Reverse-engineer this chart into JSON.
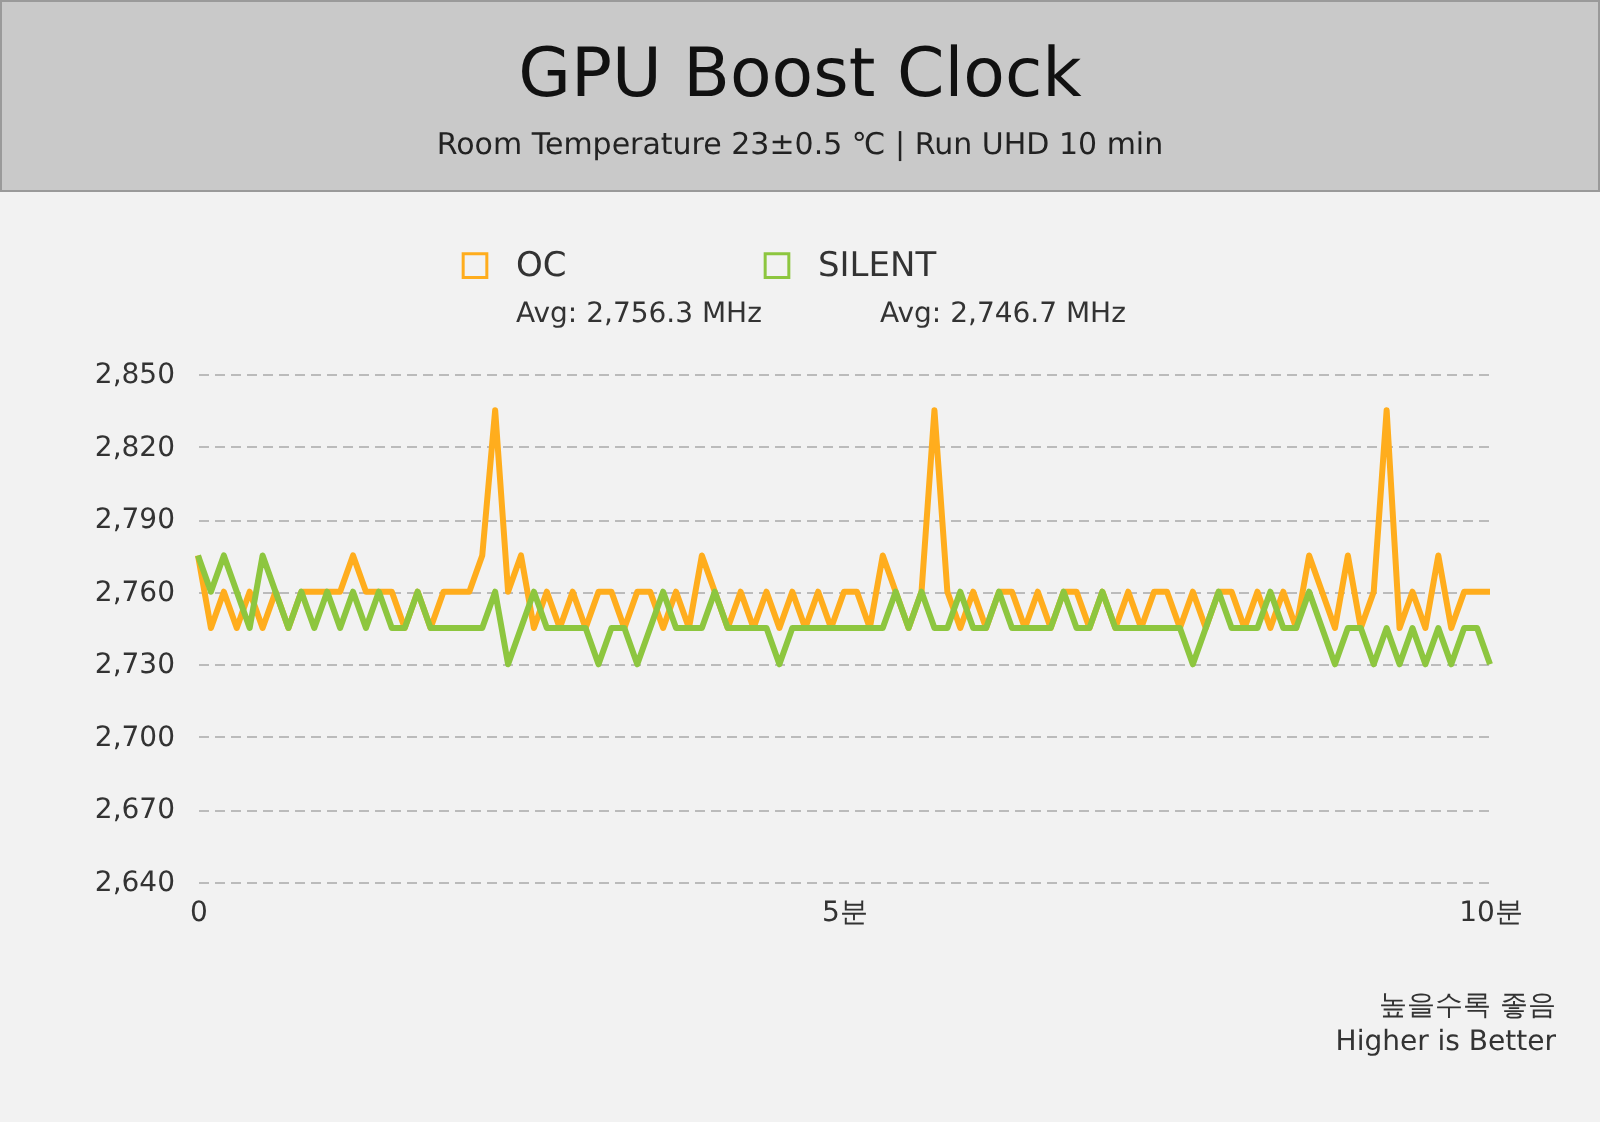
{
  "chart_data": {
    "type": "line",
    "title": "GPU Boost Clock",
    "subtitle": "Room Temperature 23±0.5 ℃  |  Run UHD 10 min",
    "x": [
      0,
      0.1,
      0.2,
      0.3,
      0.4,
      0.5,
      0.6,
      0.7,
      0.8,
      0.9,
      1,
      1.1,
      1.2,
      1.3,
      1.4,
      1.5,
      1.6,
      1.7,
      1.8,
      1.9,
      2,
      2.1,
      2.2,
      2.3,
      2.4,
      2.5,
      2.6,
      2.7,
      2.8,
      2.9,
      3,
      3.1,
      3.2,
      3.3,
      3.4,
      3.5,
      3.6,
      3.7,
      3.8,
      3.9,
      4,
      4.1,
      4.2,
      4.3,
      4.4,
      4.5,
      4.6,
      4.7,
      4.8,
      4.9,
      5,
      5.1,
      5.2,
      5.3,
      5.4,
      5.5,
      5.6,
      5.7,
      5.8,
      5.9,
      6,
      6.1,
      6.2,
      6.3,
      6.4,
      6.5,
      6.6,
      6.7,
      6.8,
      6.9,
      7,
      7.1,
      7.2,
      7.3,
      7.4,
      7.5,
      7.6,
      7.7,
      7.8,
      7.9,
      8,
      8.1,
      8.2,
      8.3,
      8.4,
      8.5,
      8.6,
      8.7,
      8.8,
      8.9,
      9,
      9.1,
      9.2,
      9.3,
      9.4,
      9.5,
      9.6,
      9.7,
      9.8,
      9.9,
      10
    ],
    "series": [
      {
        "name": "OC",
        "color": "#ffad1d",
        "values": [
          2775,
          2745,
          2760,
          2745,
          2760,
          2745,
          2760,
          2745,
          2760,
          2760,
          2760,
          2760,
          2775,
          2760,
          2760,
          2760,
          2745,
          2760,
          2745,
          2760,
          2760,
          2760,
          2775,
          2835,
          2760,
          2775,
          2745,
          2760,
          2745,
          2760,
          2745,
          2760,
          2760,
          2745,
          2760,
          2760,
          2745,
          2760,
          2745,
          2775,
          2760,
          2745,
          2760,
          2745,
          2760,
          2745,
          2760,
          2745,
          2760,
          2745,
          2760,
          2760,
          2745,
          2775,
          2760,
          2745,
          2760,
          2835,
          2760,
          2745,
          2760,
          2745,
          2760,
          2760,
          2745,
          2760,
          2745,
          2760,
          2760,
          2745,
          2760,
          2745,
          2760,
          2745,
          2760,
          2760,
          2745,
          2760,
          2745,
          2760,
          2760,
          2745,
          2760,
          2745,
          2760,
          2745,
          2775,
          2760,
          2745,
          2775,
          2745,
          2760,
          2835,
          2745,
          2760,
          2745,
          2775,
          2745,
          2760,
          2760,
          2760
        ]
      },
      {
        "name": "SILENT",
        "color": "#8dc63f",
        "values": [
          2775,
          2760,
          2775,
          2760,
          2745,
          2775,
          2760,
          2745,
          2760,
          2745,
          2760,
          2745,
          2760,
          2745,
          2760,
          2745,
          2745,
          2760,
          2745,
          2745,
          2745,
          2745,
          2745,
          2760,
          2730,
          2745,
          2760,
          2745,
          2745,
          2745,
          2745,
          2730,
          2745,
          2745,
          2730,
          2745,
          2760,
          2745,
          2745,
          2745,
          2760,
          2745,
          2745,
          2745,
          2745,
          2730,
          2745,
          2745,
          2745,
          2745,
          2745,
          2745,
          2745,
          2745,
          2760,
          2745,
          2760,
          2745,
          2745,
          2760,
          2745,
          2745,
          2760,
          2745,
          2745,
          2745,
          2745,
          2760,
          2745,
          2745,
          2760,
          2745,
          2745,
          2745,
          2745,
          2745,
          2745,
          2730,
          2745,
          2760,
          2745,
          2745,
          2745,
          2760,
          2745,
          2745,
          2760,
          2745,
          2730,
          2745,
          2745,
          2730,
          2745,
          2730,
          2745,
          2730,
          2745,
          2730,
          2745,
          2745,
          2730
        ]
      }
    ],
    "xlim": [
      0,
      10
    ],
    "xticks": [
      0,
      {
        "value": 5,
        "label": "5분"
      },
      {
        "value": 10,
        "label": "10분"
      }
    ],
    "ylim": [
      2640,
      2850
    ],
    "yticks": [
      {
        "value": 2640,
        "label": "2,640"
      },
      {
        "value": 2670,
        "label": "2,670"
      },
      {
        "value": 2700,
        "label": "2,700"
      },
      {
        "value": 2730,
        "label": "2,730"
      },
      {
        "value": 2760,
        "label": "2,760"
      },
      {
        "value": 2790,
        "label": "2,790"
      },
      {
        "value": 2820,
        "label": "2,820"
      },
      {
        "value": 2850,
        "label": "2,850"
      }
    ],
    "grid": "y",
    "legend": "top",
    "line_style": "solid",
    "marker": "none",
    "annotations": [
      "Avg: 2,756.3 MHz",
      "Avg: 2,746.7 MHz",
      "높을수록 좋음",
      "Higher is Better"
    ]
  }
}
